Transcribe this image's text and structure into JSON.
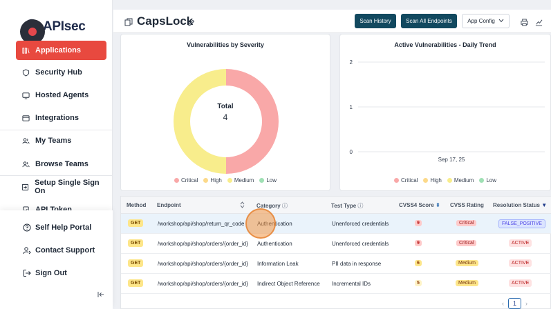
{
  "app": {
    "logo_text": "APIsec"
  },
  "sidebar": {
    "items": [
      {
        "label": "Applications",
        "icon": "applications-icon",
        "active": true
      },
      {
        "label": "Security Hub",
        "icon": "shield-icon"
      },
      {
        "label": "Hosted Agents",
        "icon": "monitor-icon"
      },
      {
        "label": "Integrations",
        "icon": "window-icon"
      },
      {
        "label": "My Teams",
        "icon": "users-icon"
      },
      {
        "label": "Browse Teams",
        "icon": "users-icon"
      },
      {
        "label": "Setup Single Sign On",
        "icon": "sign-in-icon"
      },
      {
        "label": "API Token",
        "icon": "token-icon"
      }
    ],
    "bottom": [
      {
        "label": "Self Help Portal",
        "icon": "help-circle-icon"
      },
      {
        "label": "Contact Support",
        "icon": "support-icon"
      },
      {
        "label": "Sign Out",
        "icon": "sign-out-icon"
      }
    ]
  },
  "header": {
    "title": "CapsLock",
    "scan_history": "Scan History",
    "scan_all": "Scan All Endpoints",
    "app_config": "App Config"
  },
  "severity_chart": {
    "title": "Vulnerabilities by Severity",
    "center_label": "Total",
    "center_value": "4",
    "legend": [
      "Critical",
      "High",
      "Medium",
      "Low"
    ]
  },
  "trend_chart": {
    "title": "Active Vulnerabilities - Daily Trend",
    "legend": [
      "Critical",
      "High",
      "Medium",
      "Low"
    ]
  },
  "chart_data": [
    {
      "type": "pie",
      "title": "Vulnerabilities by Severity",
      "categories": [
        "Critical",
        "High",
        "Medium",
        "Low"
      ],
      "values": [
        2,
        0,
        2,
        0
      ],
      "colors": [
        "#f9a8a8",
        "#fcd98a",
        "#f8ed8c",
        "#9fe0b4"
      ]
    },
    {
      "type": "line",
      "title": "Active Vulnerabilities - Daily Trend",
      "x": [
        "Sep 17, 25"
      ],
      "y_ticks": [
        0,
        1,
        2
      ],
      "ylim": [
        0,
        2
      ],
      "series": []
    }
  ],
  "table": {
    "headers": [
      "Method",
      "Endpoint",
      "Category",
      "Test Type",
      "CVSS4 Score",
      "CVSS Rating",
      "Resolution Status"
    ],
    "rows": [
      {
        "method": "GET",
        "endpoint": "/workshop/api/shop/return_qr_code",
        "category": "Authentication",
        "test_type": "Unenforced credentials",
        "score": "9",
        "rating": "Critical",
        "status": "FALSE_POSITIVE"
      },
      {
        "method": "GET",
        "endpoint": "/workshop/api/shop/orders/{order_id}",
        "category": "Authentication",
        "test_type": "Unenforced credentials",
        "score": "9",
        "rating": "Critical",
        "status": "ACTIVE"
      },
      {
        "method": "GET",
        "endpoint": "/workshop/api/shop/orders/{order_id}",
        "category": "Information Leak",
        "test_type": "PII data in response",
        "score": "6",
        "rating": "Medium",
        "status": "ACTIVE"
      },
      {
        "method": "GET",
        "endpoint": "/workshop/api/shop/orders/{order_id}",
        "category": "Indirect Object Reference",
        "test_type": "Incremental IDs",
        "score": "5",
        "rating": "Medium",
        "status": "ACTIVE"
      }
    ],
    "page": "1"
  },
  "colors": {
    "accent": "#e8493f",
    "brand_dark": "#12495f"
  }
}
